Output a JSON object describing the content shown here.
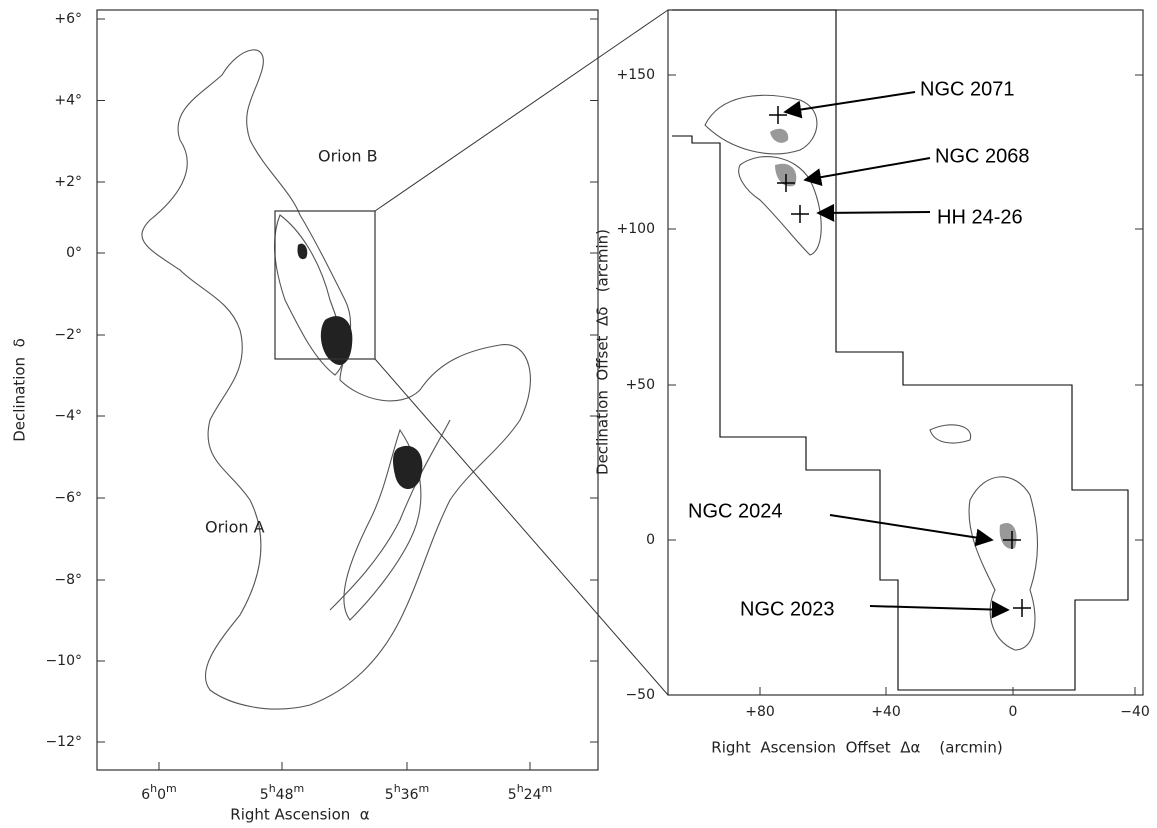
{
  "left_panel": {
    "y_ticks": [
      "+6°",
      "+4°",
      "+2°",
      "0°",
      "−2°",
      "−4°",
      "−6°",
      "−8°",
      "−10°",
      "−12°"
    ],
    "x_ticks": [
      "6h0m",
      "5h48m",
      "5h36m",
      "5h24m"
    ],
    "x_axis_label": "Right Ascension  α",
    "y_axis_label": "Declination  δ",
    "labels": [
      "Orion B",
      "Orion A"
    ]
  },
  "right_panel": {
    "y_ticks": [
      "+150",
      "+100",
      "+50",
      "0",
      "−50"
    ],
    "x_ticks": [
      "+80",
      "+40",
      "0",
      "−40"
    ],
    "x_axis_label": "Right  Ascension  Offset  Δα    (arcmin)",
    "y_axis_label": "Declination  Offset  Δδ   (arcmin)",
    "annotations": [
      "NGC 2071",
      "NGC 2068",
      "HH 24-26",
      "NGC 2024",
      "NGC 2023"
    ]
  }
}
